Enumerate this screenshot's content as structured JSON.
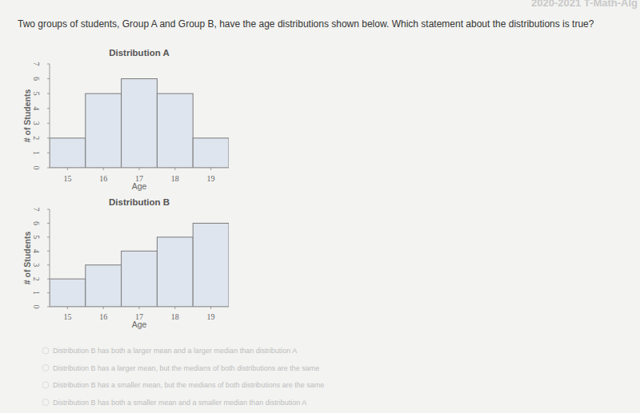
{
  "header": "2020-2021 T-Math-Alg",
  "question": "Two groups of students, Group A and Group B, have the age distributions shown below.  Which statement about the distributions is true?",
  "chart_data": [
    {
      "type": "histogram",
      "title": "Distribution A",
      "x_label": "Age",
      "y_label": "# of Students",
      "bins": [
        14.5,
        15.5,
        16.5,
        17.5,
        18.5,
        19.5
      ],
      "values": [
        2,
        5,
        6,
        5,
        2
      ],
      "xlim": [
        14.5,
        19.5
      ],
      "xticks": [
        15,
        16,
        17,
        18,
        19
      ],
      "ylim": [
        0,
        7
      ],
      "yticks": [
        0,
        1,
        2,
        3,
        4,
        5,
        6,
        7
      ],
      "color": "#dfe5ee"
    },
    {
      "type": "histogram",
      "title": "Distribution B",
      "x_label": "Age",
      "y_label": "# of Students",
      "bins": [
        14.5,
        15.5,
        16.5,
        17.5,
        18.5,
        19.5
      ],
      "values": [
        2,
        3,
        4,
        5,
        6
      ],
      "xlim": [
        14.5,
        19.5
      ],
      "xticks": [
        15,
        16,
        17,
        18,
        19
      ],
      "ylim": [
        0,
        7
      ],
      "yticks": [
        0,
        1,
        2,
        3,
        4,
        5,
        6,
        7
      ],
      "color": "#dfe5ee"
    }
  ],
  "options": [
    "Distribution B has both a larger mean and a larger median than distribution A",
    "Distribution B has a larger mean, but the medians of both distributions are the same",
    "Distribution B has a smaller mean, but the medians of both distributions are the same",
    "Distribution B has both a smaller mean and a smaller median than distribution A"
  ]
}
